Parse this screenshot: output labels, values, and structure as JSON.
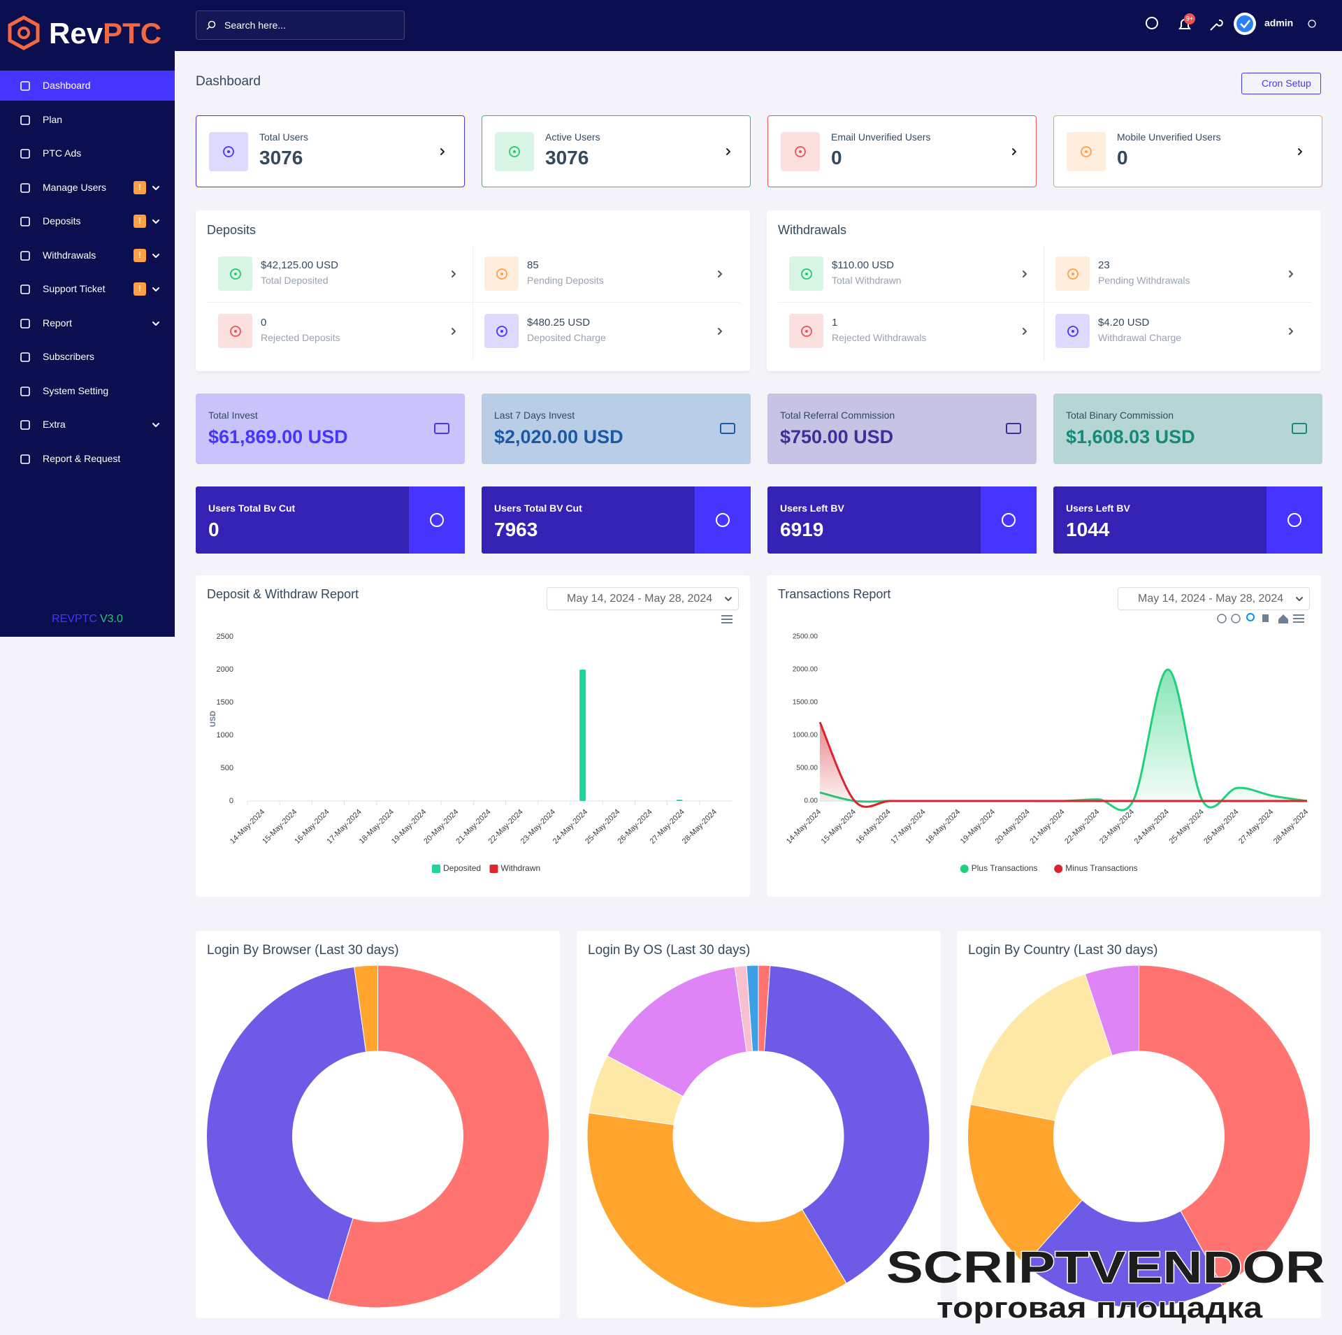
{
  "header": {
    "brand": {
      "part1": "Rev",
      "part2": "PTC"
    },
    "search_placeholder": "Search here...",
    "notification_count": "9+",
    "user": "admin"
  },
  "sidebar": {
    "items": [
      {
        "label": "Dashboard",
        "active": true
      },
      {
        "label": "Plan"
      },
      {
        "label": "PTC Ads"
      },
      {
        "label": "Manage Users",
        "badge": "!",
        "submenu": true
      },
      {
        "label": "Deposits",
        "badge": "!",
        "submenu": true
      },
      {
        "label": "Withdrawals",
        "badge": "!",
        "submenu": true
      },
      {
        "label": "Support Ticket",
        "badge": "!",
        "submenu": true
      },
      {
        "label": "Report",
        "submenu": true
      },
      {
        "label": "Subscribers"
      },
      {
        "label": "System Setting"
      },
      {
        "label": "Extra",
        "submenu": true
      },
      {
        "label": "Report & Request"
      }
    ],
    "footer": {
      "name": "REVPTC",
      "version": "V3.0"
    }
  },
  "page": {
    "title": "Dashboard",
    "button": "Cron Setup"
  },
  "user_cards": [
    {
      "label": "Total Users",
      "value": 3076,
      "color": "#4634ff"
    },
    {
      "label": "Active Users",
      "value": 3076,
      "color": "#28c76f"
    },
    {
      "label": "Email Unverified Users",
      "value": 0,
      "color": "#ea5455"
    },
    {
      "label": "Mobile Unverified Users",
      "value": 0,
      "color": "#ff9f43"
    }
  ],
  "deposits": {
    "title": "Deposits",
    "items": [
      {
        "value": "$42,125.00 USD",
        "label": "Total Deposited",
        "color": "#28c76f"
      },
      {
        "value": 85,
        "label": "Pending Deposits",
        "color": "#ff9f43"
      },
      {
        "value": 0,
        "label": "Rejected Deposits",
        "color": "#ea5455"
      },
      {
        "value": "$480.25 USD",
        "label": "Deposited Charge",
        "color": "#4634ff"
      }
    ]
  },
  "withdrawals": {
    "title": "Withdrawals",
    "items": [
      {
        "value": "$110.00 USD",
        "label": "Total Withdrawn",
        "color": "#28c76f"
      },
      {
        "value": 23,
        "label": "Pending Withdrawals",
        "color": "#ff9f43"
      },
      {
        "value": 1,
        "label": "Rejected Withdrawals",
        "color": "#ea5455"
      },
      {
        "value": "$4.20 USD",
        "label": "Withdrawal Charge",
        "color": "#4634ff"
      }
    ]
  },
  "invest_cards": [
    {
      "label": "Total Invest",
      "value": "$61,869.00 USD",
      "color": "#4634ff",
      "background": "#c8c4fb"
    },
    {
      "label": "Last 7 Days Invest",
      "value": "$2,020.00 USD",
      "color": "#1b58a5",
      "background": "#b9cde6"
    },
    {
      "label": "Total Referral Commission",
      "value": "$750.00 USD",
      "color": "#3d2f9a",
      "background": "#c6c3e4"
    },
    {
      "label": "Total Binary Commission",
      "value": "$1,608.03 USD",
      "color": "#138a7a",
      "background": "#b6d6d5"
    }
  ],
  "bv_cards": [
    {
      "label": "Users Total Bv Cut",
      "value": 0
    },
    {
      "label": "Users Total BV Cut",
      "value": 7963
    },
    {
      "label": "Users Left BV",
      "value": 6919
    },
    {
      "label": "Users Left BV",
      "value": 1044
    }
  ],
  "chart_data": [
    {
      "type": "bar",
      "title": "Deposit & Withdraw Report",
      "date_range": "May 14, 2024 - May 28, 2024",
      "y_label": "USD",
      "categories": [
        "14-May-2024",
        "15-May-2024",
        "16-May-2024",
        "17-May-2024",
        "18-May-2024",
        "19-May-2024",
        "20-May-2024",
        "21-May-2024",
        "22-May-2024",
        "23-May-2024",
        "24-May-2024",
        "25-May-2024",
        "26-May-2024",
        "27-May-2024",
        "28-May-2024"
      ],
      "series": [
        {
          "name": "Deposited",
          "color": "#1ed69a",
          "values": [
            0,
            0,
            0,
            0,
            0,
            0,
            0,
            0,
            0,
            0,
            2000,
            0,
            0,
            20,
            0
          ]
        },
        {
          "name": "Withdrawn",
          "color": "#e0262d",
          "values": [
            0,
            0,
            0,
            0,
            0,
            0,
            0,
            0,
            0,
            0,
            0,
            0,
            0,
            0,
            0
          ]
        }
      ],
      "ylim": [
        0,
        2500
      ],
      "yticks": [
        0,
        500,
        1000,
        1500,
        2000,
        2500
      ],
      "grid": false
    },
    {
      "type": "line",
      "title": "Transactions Report",
      "date_range": "May 14, 2024 - May 28, 2024",
      "categories": [
        "14-May-2024",
        "15-May-2024",
        "16-May-2024",
        "17-May-2024",
        "18-May-2024",
        "19-May-2024",
        "20-May-2024",
        "21-May-2024",
        "22-May-2024",
        "23-May-2024",
        "24-May-2024",
        "25-May-2024",
        "26-May-2024",
        "27-May-2024",
        "28-May-2024"
      ],
      "series": [
        {
          "name": "Plus Transactions",
          "color": "#21d07a",
          "values": [
            130,
            0,
            0,
            0,
            0,
            0,
            0,
            0,
            25,
            0,
            2000,
            0,
            200,
            80,
            0
          ]
        },
        {
          "name": "Minus Transactions",
          "color": "#d9232d",
          "values": [
            1200,
            0,
            0,
            0,
            0,
            0,
            0,
            0,
            0,
            0,
            0,
            0,
            0,
            0,
            0
          ]
        }
      ],
      "ylim": [
        0,
        2500
      ],
      "yticks": [
        {
          "value": 0,
          "label": "0.00"
        },
        {
          "value": 500,
          "label": "500.00"
        },
        {
          "value": 1000,
          "label": "1000.00"
        },
        {
          "value": 1500,
          "label": "1500.00"
        },
        {
          "value": 2000,
          "label": "2000.00"
        },
        {
          "value": 2500,
          "label": "2500.00"
        }
      ],
      "grid": false
    },
    {
      "type": "doughnut",
      "title": "Login By Browser (Last 30 days)",
      "categories": [
        null,
        null,
        null
      ],
      "values": [
        54.7,
        43.1,
        2.2
      ],
      "colors": [
        "#ff7470",
        "#6d5ae6",
        "#ffa42c"
      ]
    },
    {
      "type": "doughnut",
      "title": "Login By OS (Last 30 days)",
      "categories": [
        null,
        null,
        null,
        null,
        null,
        null,
        null
      ],
      "values": [
        1.1,
        40.3,
        35.8,
        5.6,
        15,
        1.1,
        1.1
      ],
      "colors": [
        "#ff7470",
        "#6d5ae6",
        "#ffa42c",
        "#fde8a6",
        "#df84f5",
        "#f8c0cf",
        "#3ba0e6"
      ]
    },
    {
      "type": "doughnut",
      "title": "Login By Country (Last 30 days)",
      "categories": [
        null,
        null,
        null,
        null,
        null
      ],
      "values": [
        41.9,
        19.7,
        16.4,
        16.9,
        5.1
      ],
      "colors": [
        "#ff7470",
        "#6d5ae6",
        "#ffa42c",
        "#fde8a6",
        "#df84f5"
      ]
    }
  ],
  "watermark": {
    "title": "SCRIPTVENDOR",
    "subtitle": "торговая площадка"
  }
}
